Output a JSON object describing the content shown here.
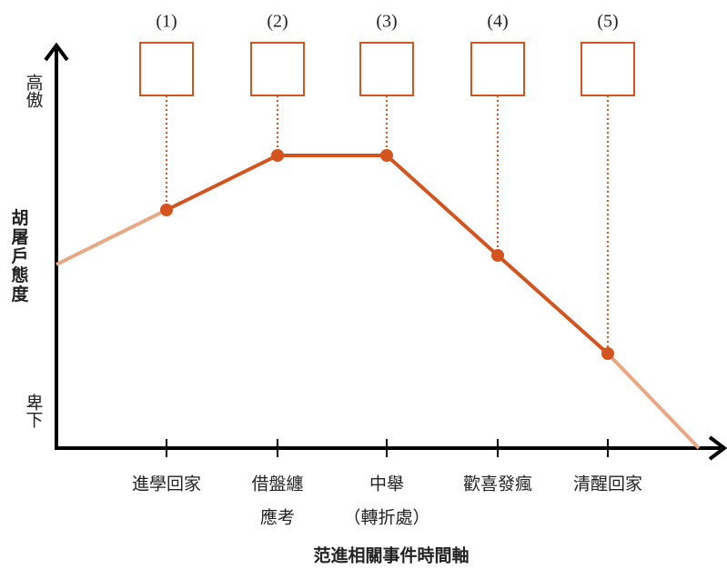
{
  "labels": {
    "high": "高傲",
    "low": "卑下",
    "y_axis": "胡屠戶態度",
    "x_axis": "范進相關事件時間軸"
  },
  "events": [
    {
      "number": "(1)",
      "label": [
        "進學回家"
      ]
    },
    {
      "number": "(2)",
      "label": [
        "借盤纏",
        "應考"
      ]
    },
    {
      "number": "(3)",
      "label": [
        "中舉",
        "（轉折處）"
      ]
    },
    {
      "number": "(4)",
      "label": [
        "歡喜發瘋"
      ]
    },
    {
      "number": "(5)",
      "label": [
        "清醒回家"
      ]
    }
  ]
}
